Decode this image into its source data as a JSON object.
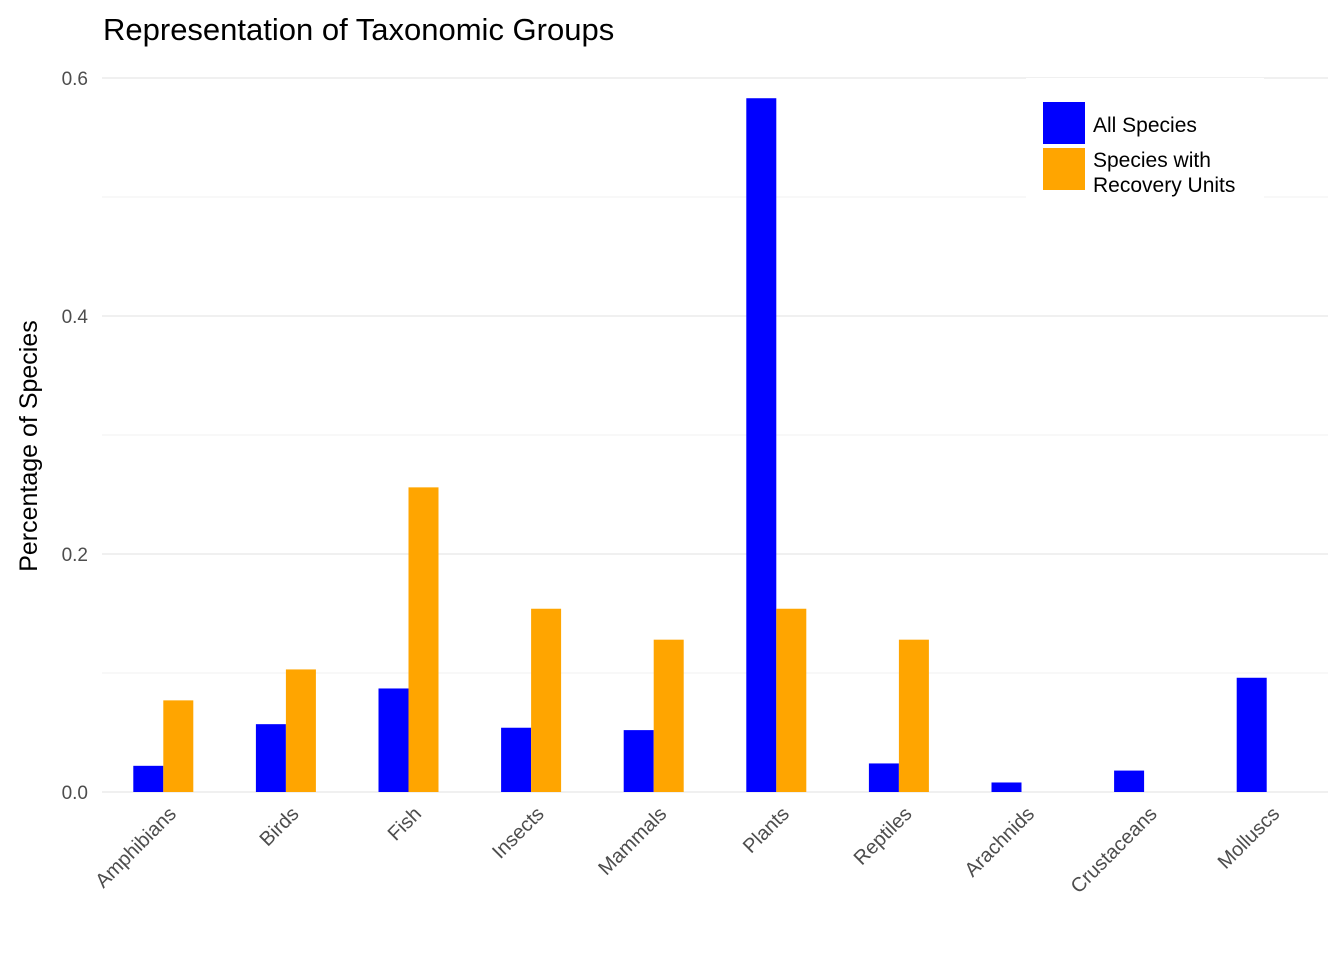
{
  "chart_data": {
    "type": "bar",
    "title": "Representation of Taxonomic Groups",
    "xlabel": "",
    "ylabel": "Percentage of Species",
    "categories": [
      "Amphibians",
      "Birds",
      "Fish",
      "Insects",
      "Mammals",
      "Plants",
      "Reptiles",
      "Arachnids",
      "Crustaceans",
      "Molluscs"
    ],
    "series": [
      {
        "name": "All Species",
        "color": "#0000ff",
        "values": [
          0.022,
          0.057,
          0.087,
          0.054,
          0.052,
          0.583,
          0.024,
          0.008,
          0.018,
          0.096
        ]
      },
      {
        "name": "Species with\nRecovery Units",
        "color": "#ffa500",
        "values": [
          0.077,
          0.103,
          0.256,
          0.154,
          0.128,
          0.154,
          0.128,
          0,
          0,
          0
        ]
      }
    ],
    "ylim": [
      0,
      0.6
    ],
    "yticks": [
      "0.0",
      "0.2",
      "0.4",
      "0.6"
    ],
    "grid": true,
    "legend_position": "top-right"
  }
}
